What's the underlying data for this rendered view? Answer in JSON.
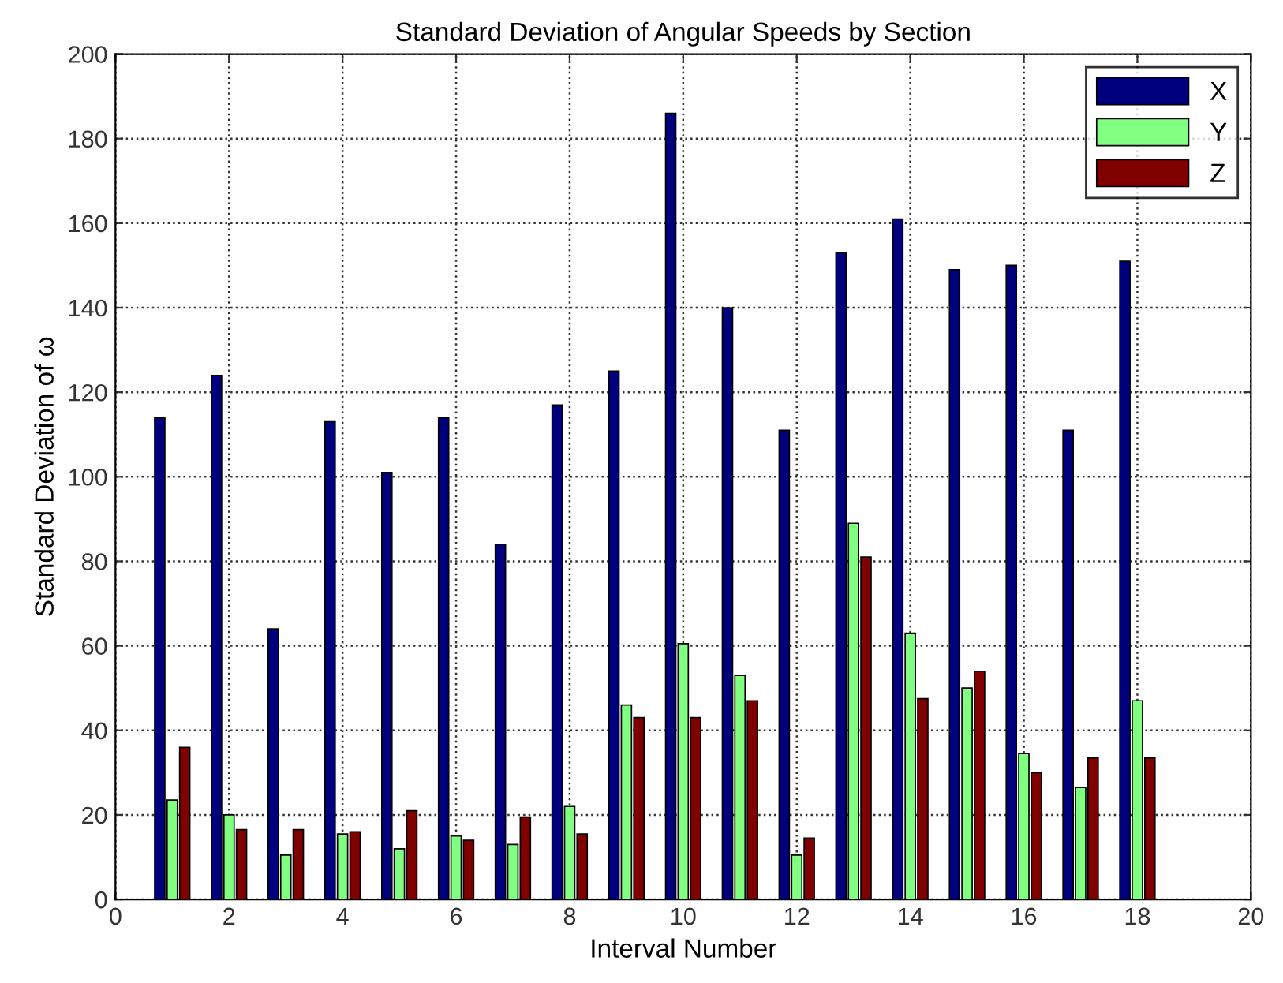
{
  "chart_data": {
    "type": "bar",
    "title": "Standard Deviation of Angular Speeds by Section",
    "xlabel": "Interval Number",
    "ylabel": "Standard Deviation of ω",
    "x": [
      1,
      2,
      3,
      4,
      5,
      6,
      7,
      8,
      9,
      10,
      11,
      12,
      13,
      14,
      15,
      16,
      17,
      18
    ],
    "series": [
      {
        "name": "X",
        "color": "#00007f",
        "values": [
          114,
          124,
          64,
          113,
          101,
          114,
          84,
          117,
          125,
          186,
          140,
          111,
          153,
          161,
          149,
          150,
          111,
          151
        ]
      },
      {
        "name": "Y",
        "color": "#80ff80",
        "values": [
          23.5,
          20,
          10.5,
          15.5,
          12,
          15,
          13,
          22,
          46,
          60.5,
          53,
          10.5,
          89,
          63,
          50,
          34.5,
          26.5,
          47
        ]
      },
      {
        "name": "Z",
        "color": "#800000",
        "values": [
          36,
          16.5,
          16.5,
          16,
          21,
          14,
          19.5,
          15.5,
          43,
          43,
          47,
          14.5,
          81,
          47.5,
          54,
          30,
          33.5,
          33.5
        ]
      }
    ],
    "xlim": [
      0,
      20
    ],
    "xticks": [
      0,
      2,
      4,
      6,
      8,
      10,
      12,
      14,
      16,
      18,
      20
    ],
    "ylim": [
      0,
      200
    ],
    "yticks": [
      0,
      20,
      40,
      60,
      80,
      100,
      120,
      140,
      160,
      180,
      200
    ],
    "grid": true,
    "legend": "top right"
  }
}
